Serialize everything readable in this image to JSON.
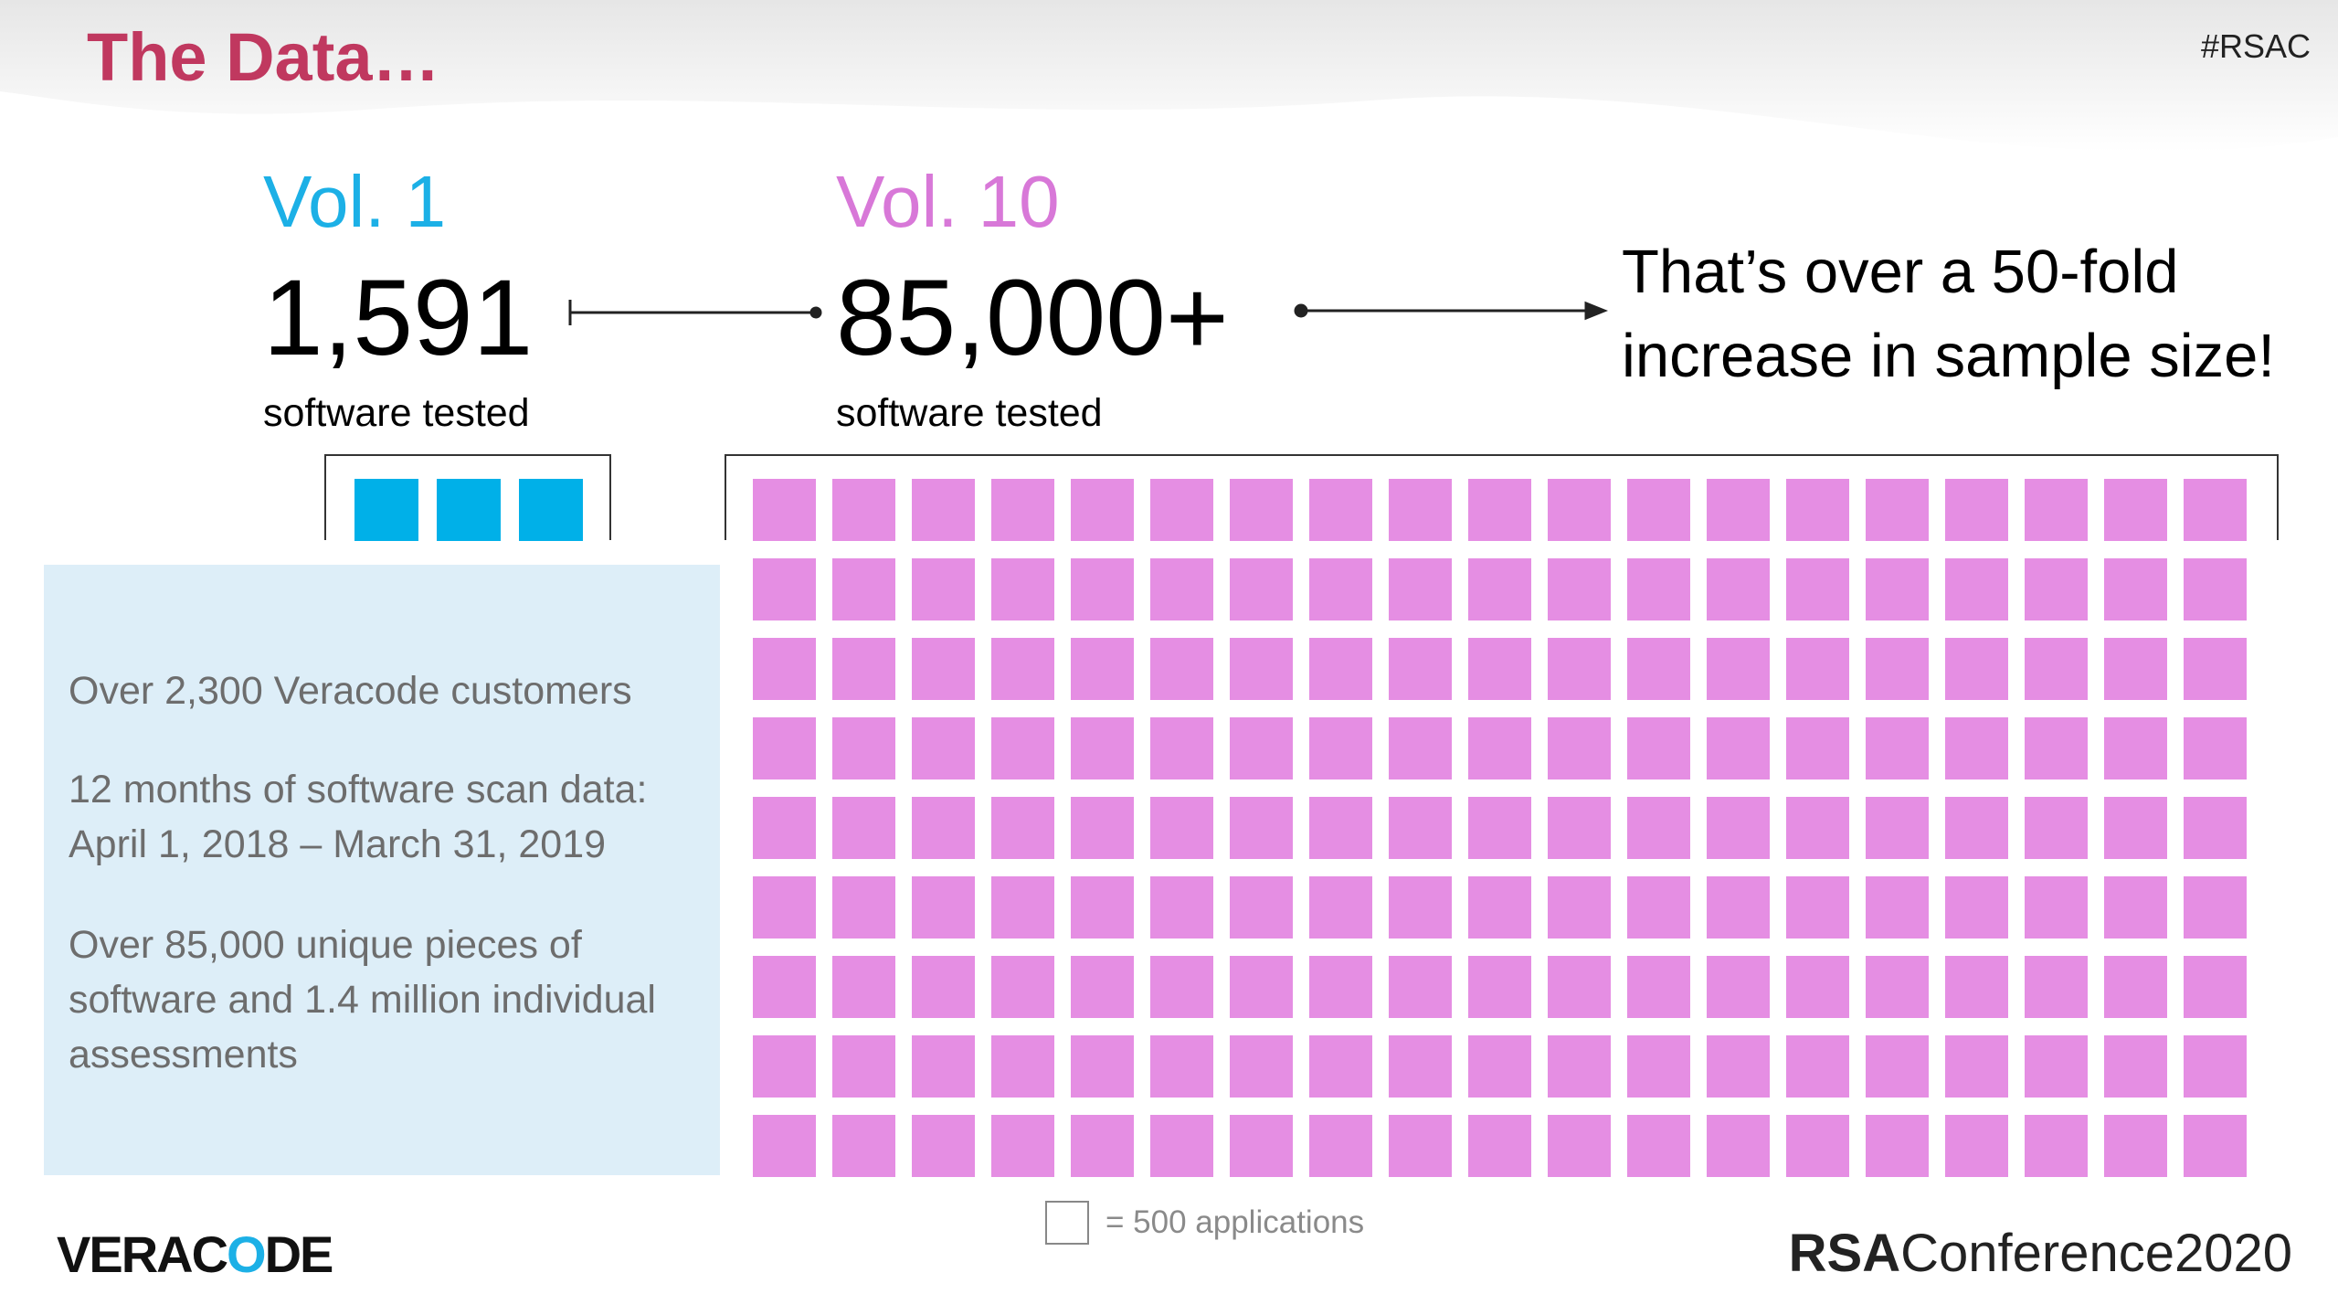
{
  "slide": {
    "title": "The Data…",
    "hashtag": "#RSAC"
  },
  "vol1": {
    "label": "Vol. 1",
    "count": "1,591",
    "subtitle": "software tested",
    "blocks": 3,
    "color": "#00b0e8"
  },
  "vol10": {
    "label": "Vol. 10",
    "count": "85,000+",
    "subtitle": "software tested",
    "blocks": 171,
    "color": "#e58ee3"
  },
  "callout": {
    "line1": "That’s over a 50-fold",
    "line2": "increase in sample size!"
  },
  "info": {
    "p1": "Over 2,300 Veracode customers",
    "p2_line1": "12 months of software scan data:",
    "p2_line2": "April 1, 2018 – March 31, 2019",
    "p3_line1": "Over 85,000 unique pieces of",
    "p3_line2": "software and 1.4 million individual",
    "p3_line3": "assessments"
  },
  "legend": {
    "text": "= 500 applications"
  },
  "logos": {
    "veracode_a": "VERAC",
    "veracode_b": "O",
    "veracode_c": "DE",
    "rsa_a": "RSA",
    "rsa_b": "Conference2020"
  },
  "colors": {
    "title": "#c0385f",
    "vol1": "#1cb0e6",
    "vol10": "#d878d8",
    "info_bg": "#ddeef8"
  }
}
